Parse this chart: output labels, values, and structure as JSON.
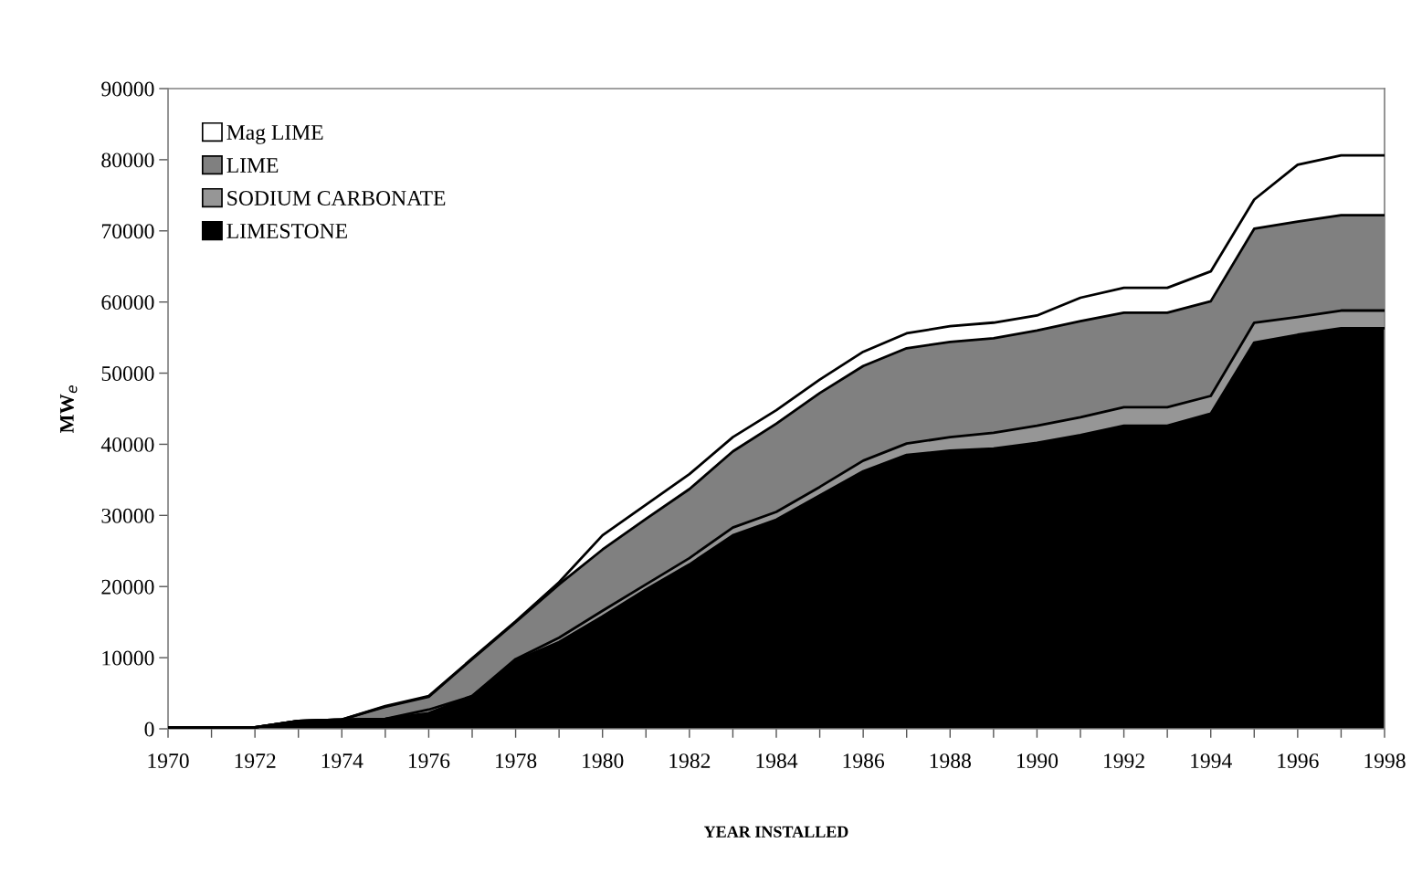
{
  "chart_data": {
    "type": "area",
    "stacked": true,
    "xlabel": "YEAR INSTALLED",
    "ylabel": "MW$_{e}$",
    "x": [
      1970,
      1971,
      1972,
      1973,
      1974,
      1975,
      1976,
      1977,
      1978,
      1979,
      1980,
      1981,
      1982,
      1983,
      1984,
      1985,
      1986,
      1987,
      1988,
      1989,
      1990,
      1991,
      1992,
      1993,
      1994,
      1995,
      1996,
      1997,
      1998
    ],
    "xlim": [
      1970,
      1998
    ],
    "xticks": [
      1970,
      {
        "value": 1971,
        "label": null
      },
      1972,
      {
        "value": 1973,
        "label": null
      },
      1974,
      {
        "value": 1975,
        "label": null
      },
      1976,
      {
        "value": 1977,
        "label": null
      },
      1978,
      {
        "value": 1979,
        "label": null
      },
      1980,
      {
        "value": 1981,
        "label": null
      },
      1982,
      {
        "value": 1983,
        "label": null
      },
      1984,
      {
        "value": 1985,
        "label": null
      },
      1986,
      {
        "value": 1987,
        "label": null
      },
      1988,
      {
        "value": 1989,
        "label": null
      },
      1990,
      {
        "value": 1991,
        "label": null
      },
      1992,
      {
        "value": 1993,
        "label": null
      },
      1994,
      {
        "value": 1995,
        "label": null
      },
      1996,
      {
        "value": 1997,
        "label": null
      },
      1998
    ],
    "ylim": [
      0,
      90000
    ],
    "yticks": [
      0,
      10000,
      20000,
      30000,
      40000,
      50000,
      60000,
      70000,
      80000,
      90000
    ],
    "legend": "top left",
    "grid": false,
    "series": [
      {
        "name": "LIMESTONE",
        "color": "#000000",
        "values": [
          200,
          200,
          200,
          1100,
          1300,
          1400,
          2200,
          4600,
          9600,
          12200,
          15800,
          19600,
          23100,
          27200,
          29400,
          32800,
          36200,
          38500,
          39100,
          39400,
          40200,
          41300,
          42600,
          42600,
          44300,
          54300,
          55400,
          56300,
          56300
        ]
      },
      {
        "name": "SODIUM CARBONATE",
        "color": "#969696",
        "values": [
          0,
          0,
          0,
          0,
          0,
          0,
          500,
          0,
          200,
          600,
          800,
          700,
          900,
          1100,
          1100,
          1200,
          1500,
          1600,
          1900,
          2200,
          2400,
          2500,
          2600,
          2600,
          2500,
          2800,
          2500,
          2500,
          2500
        ]
      },
      {
        "name": "LIME",
        "color": "#808080",
        "values": [
          0,
          0,
          0,
          0,
          0,
          1700,
          1800,
          5200,
          5200,
          7500,
          8600,
          9200,
          9700,
          10700,
          12400,
          13200,
          13300,
          13400,
          13400,
          13300,
          13400,
          13500,
          13300,
          13300,
          13300,
          13200,
          13400,
          13400,
          13400
        ]
      },
      {
        "name": "Mag LIME",
        "color": "#ffffff",
        "values": [
          0,
          0,
          0,
          0,
          0,
          100,
          100,
          100,
          100,
          300,
          2000,
          2000,
          2100,
          2000,
          1900,
          1900,
          2000,
          2100,
          2200,
          2200,
          2100,
          3300,
          3500,
          3500,
          4200,
          4100,
          8000,
          8400,
          8400
        ]
      }
    ]
  }
}
